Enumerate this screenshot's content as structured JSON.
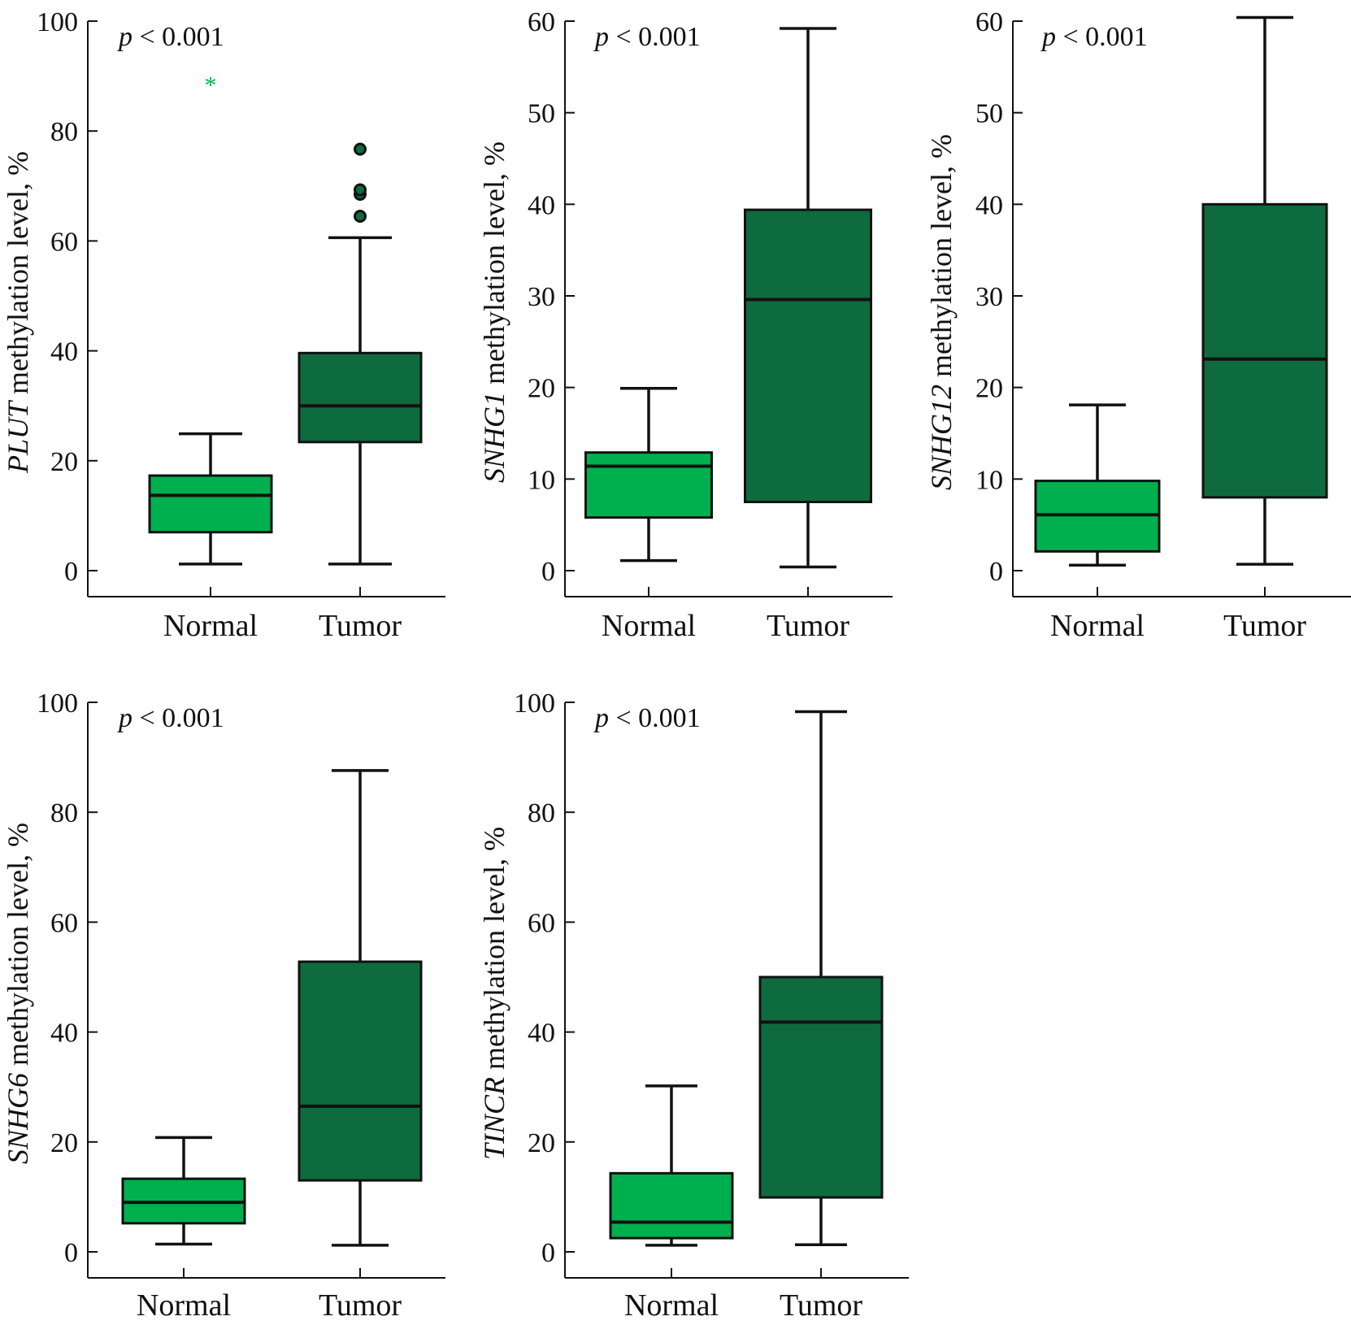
{
  "colors": {
    "normal": "#00B04F",
    "tumor": "#0E6B3E",
    "outline": "#111111",
    "star": "#00B04F"
  },
  "chart_data": [
    {
      "type": "box",
      "gene": "PLUT",
      "ylabel_rest": " methylation level, %",
      "ylim": [
        0,
        100
      ],
      "yticks": [
        0,
        20,
        40,
        60,
        80,
        100
      ],
      "annotation": {
        "p": "p",
        "rest": " < 0.001"
      },
      "categories": [
        "Normal",
        "Tumor"
      ],
      "boxes": [
        {
          "name": "Normal",
          "min": 1.2,
          "q1": 7,
          "median": 13.7,
          "q3": 17.3,
          "max": 24.9,
          "outliers": [],
          "extremes": [
            89
          ]
        },
        {
          "name": "Tumor",
          "min": 1.2,
          "q1": 23.4,
          "median": 30,
          "q3": 39.6,
          "max": 60.6,
          "outliers": [
            64.5,
            68.5,
            69.3,
            76.7
          ],
          "extremes": []
        }
      ]
    },
    {
      "type": "box",
      "gene": "SNHG1",
      "ylabel_rest": " methylation level, %",
      "ylim": [
        0,
        60
      ],
      "yticks": [
        0,
        10,
        20,
        30,
        40,
        50,
        60
      ],
      "annotation": {
        "p": "p",
        "rest": " < 0.001"
      },
      "categories": [
        "Normal",
        "Tumor"
      ],
      "boxes": [
        {
          "name": "Normal",
          "min": 1.1,
          "q1": 5.8,
          "median": 11.4,
          "q3": 12.9,
          "max": 19.9,
          "outliers": [],
          "extremes": []
        },
        {
          "name": "Tumor",
          "min": 0.4,
          "q1": 7.5,
          "median": 29.6,
          "q3": 39.4,
          "max": 59.2,
          "outliers": [],
          "extremes": []
        }
      ]
    },
    {
      "type": "box",
      "gene": "SNHG12",
      "ylabel_rest": " methylation level, %",
      "ylim": [
        0,
        60
      ],
      "yticks": [
        0,
        10,
        20,
        30,
        40,
        50,
        60
      ],
      "annotation": {
        "p": "p",
        "rest": " < 0.001"
      },
      "categories": [
        "Normal",
        "Tumor"
      ],
      "boxes": [
        {
          "name": "Normal",
          "min": 0.6,
          "q1": 2.1,
          "median": 6.1,
          "q3": 9.8,
          "max": 18.1,
          "outliers": [],
          "extremes": []
        },
        {
          "name": "Tumor",
          "min": 0.7,
          "q1": 8,
          "median": 23.1,
          "q3": 40,
          "max": 60.4,
          "outliers": [],
          "extremes": []
        }
      ]
    },
    {
      "type": "box",
      "gene": "SNHG6",
      "ylabel_rest": " methylation level, %",
      "ylim": [
        0,
        100
      ],
      "yticks": [
        0,
        20,
        40,
        60,
        80,
        100
      ],
      "annotation": {
        "p": "p",
        "rest": " < 0.001"
      },
      "categories": [
        "Normal",
        "Tumor"
      ],
      "boxes": [
        {
          "name": "Normal",
          "min": 1.4,
          "q1": 5.2,
          "median": 9,
          "q3": 13.3,
          "max": 20.8,
          "outliers": [],
          "extremes": []
        },
        {
          "name": "Tumor",
          "min": 1.2,
          "q1": 13,
          "median": 26.5,
          "q3": 52.8,
          "max": 87.6,
          "outliers": [],
          "extremes": []
        }
      ]
    },
    {
      "type": "box",
      "gene": "TINCR",
      "ylabel_rest": " methylation level, %",
      "ylim": [
        0,
        100
      ],
      "yticks": [
        0,
        20,
        40,
        60,
        80,
        100
      ],
      "annotation": {
        "p": "p",
        "rest": " < 0.001"
      },
      "categories": [
        "Normal",
        "Tumor"
      ],
      "boxes": [
        {
          "name": "Normal",
          "min": 1.2,
          "q1": 2.5,
          "median": 5.4,
          "q3": 14.3,
          "max": 30.2,
          "outliers": [],
          "extremes": []
        },
        {
          "name": "Tumor",
          "min": 1.3,
          "q1": 9.9,
          "median": 41.8,
          "q3": 50,
          "max": 98.3,
          "outliers": [],
          "extremes": []
        }
      ]
    }
  ]
}
